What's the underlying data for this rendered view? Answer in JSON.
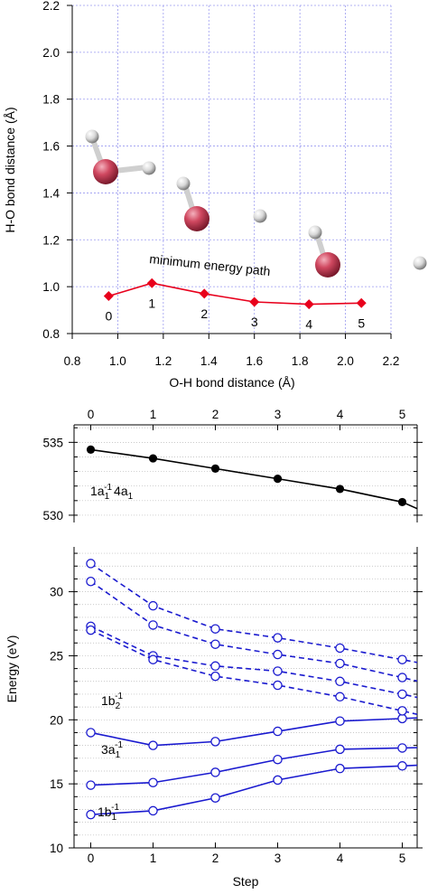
{
  "colors": {
    "path_red": "#e8001c",
    "ground_black": "#000000",
    "series_blue": "#1a1acf",
    "grid_blue": "#9a9af0",
    "oxygen": "#d04860",
    "hydrogen": "#d8d8d8"
  },
  "chart_data": [
    {
      "type": "line",
      "xlabel": "O-H bond distance (Å)",
      "ylabel": "H-O bond distance (Å)",
      "xlim": [
        0.8,
        2.2
      ],
      "ylim": [
        0.8,
        2.2
      ],
      "xticks": [
        "0.8",
        "1.0",
        "1.2",
        "1.4",
        "1.6",
        "1.8",
        "2.0",
        "2.2"
      ],
      "yticks": [
        "0.8",
        "1.0",
        "1.2",
        "1.4",
        "1.6",
        "1.8",
        "2.0",
        "2.2"
      ],
      "grid": true,
      "annotation": "minimum energy path",
      "series": [
        {
          "x": [
            0.96,
            1.15,
            1.38,
            1.6,
            1.84,
            2.07
          ],
          "y": [
            0.96,
            1.015,
            0.97,
            0.935,
            0.925,
            0.93
          ],
          "point_labels": [
            "0",
            "1",
            "2",
            "3",
            "4",
            "5"
          ],
          "marker": "diamond",
          "color": "#e8001c"
        }
      ]
    },
    {
      "type": "line",
      "xticks": [
        "0",
        "1",
        "2",
        "3",
        "4",
        "5"
      ],
      "xlim": [
        0,
        5.25
      ],
      "ylim": [
        529.5,
        536.2
      ],
      "yticks": [
        "530",
        "535"
      ],
      "grid": true,
      "series": [
        {
          "name": "1a1-1 4a1",
          "x": [
            0,
            1,
            2,
            3,
            4,
            5
          ],
          "y": [
            534.5,
            533.9,
            533.2,
            532.5,
            531.8,
            530.9
          ],
          "marker": "filled-circle",
          "color": "#000000"
        }
      ]
    },
    {
      "type": "line",
      "xlabel": "Step",
      "ylabel": "Energy (eV)",
      "xticks": [
        "0",
        "1",
        "2",
        "3",
        "4",
        "5"
      ],
      "xlim": [
        0,
        5.25
      ],
      "ylim": [
        10,
        33.5
      ],
      "yticks": [
        "10",
        "15",
        "20",
        "25",
        "30"
      ],
      "grid": true,
      "series": [
        {
          "name": "1b2-1",
          "style": "solid",
          "x": [
            0,
            1,
            2,
            3,
            4,
            5
          ],
          "y": [
            19.0,
            18.0,
            18.3,
            19.1,
            19.9,
            20.1
          ]
        },
        {
          "name": "3a1-1",
          "style": "solid",
          "x": [
            0,
            1,
            2,
            3,
            4,
            5
          ],
          "y": [
            14.9,
            15.1,
            15.9,
            16.9,
            17.7,
            17.8
          ]
        },
        {
          "name": "1b1-1",
          "style": "solid",
          "x": [
            0,
            1,
            2,
            3,
            4,
            5
          ],
          "y": [
            12.6,
            12.9,
            13.9,
            15.3,
            16.2,
            16.4
          ]
        },
        {
          "style": "dashed",
          "x": [
            0,
            1,
            2,
            3,
            4,
            5
          ],
          "y": [
            32.2,
            28.9,
            27.1,
            26.4,
            25.6,
            24.7
          ]
        },
        {
          "style": "dashed",
          "x": [
            0,
            1,
            2,
            3,
            4,
            5
          ],
          "y": [
            30.8,
            27.4,
            25.9,
            25.1,
            24.4,
            23.3
          ]
        },
        {
          "style": "dashed",
          "x": [
            0,
            1,
            2,
            3,
            4,
            5
          ],
          "y": [
            27.3,
            25.0,
            24.2,
            23.8,
            23.0,
            22.0
          ]
        },
        {
          "style": "dashed",
          "x": [
            0,
            1,
            2,
            3,
            4,
            5
          ],
          "y": [
            27.0,
            24.7,
            23.4,
            22.7,
            21.8,
            20.7
          ]
        }
      ]
    }
  ],
  "labels": {
    "peak1_main": "1a",
    "peak1_sub1": "1",
    "peak1_sup1": "-1",
    "peak1_rest": "4a",
    "peak1_sub2": "1",
    "b2_main": "1b",
    "b2_sub": "2",
    "b2_sup": "-1",
    "a1_main": "3a",
    "a1_sub": "1",
    "a1_sup": "-1",
    "b1_main": "1b",
    "b1_sub": "1",
    "b1_sup": "-1"
  }
}
